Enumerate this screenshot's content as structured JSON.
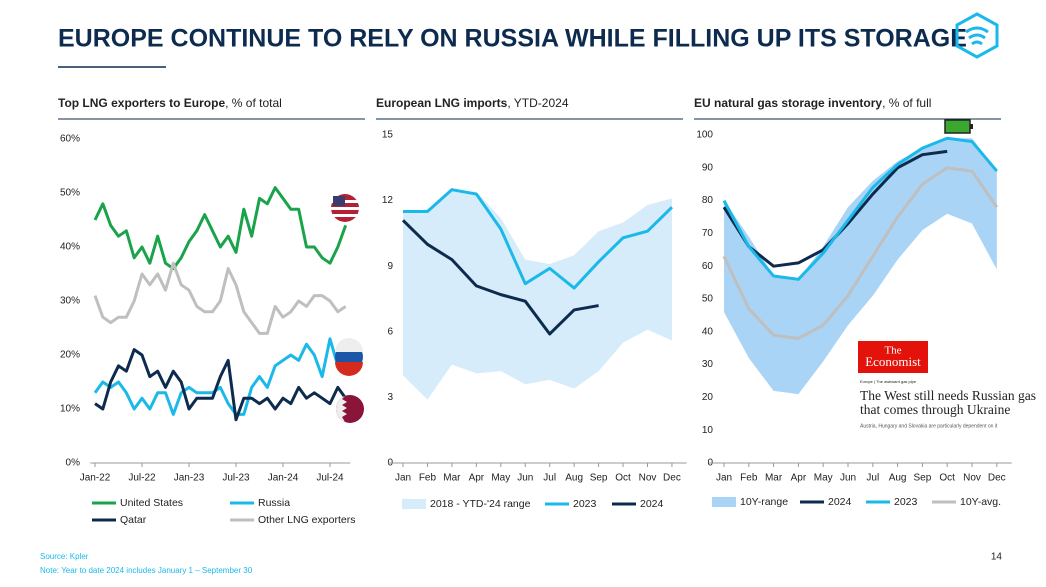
{
  "header": {
    "title": "EUROPE CONTINUE TO RELY ON RUSSIA WHILE FILLING UP ITS STORAGE"
  },
  "chart_data": [
    {
      "type": "line",
      "title": "Top LNG exporters to Europe",
      "subtitle": ", % of total",
      "categories": [
        "Jan-22",
        null,
        null,
        null,
        null,
        null,
        "Jul-22",
        null,
        null,
        null,
        null,
        null,
        "Jan-23",
        null,
        null,
        null,
        null,
        null,
        "Jul-23",
        null,
        null,
        null,
        null,
        null,
        "Jan-24",
        null,
        null,
        null,
        null,
        null,
        "Jul-24",
        null,
        null
      ],
      "ylim": [
        0,
        60
      ],
      "yticks": [
        {
          "value": 0,
          "label": "0%"
        },
        {
          "value": 10,
          "label": "10%"
        },
        {
          "value": 20,
          "label": "20%"
        },
        {
          "value": 30,
          "label": "30%"
        },
        {
          "value": 40,
          "label": "40%"
        },
        {
          "value": 50,
          "label": "50%"
        },
        {
          "value": 60,
          "label": "60%"
        }
      ],
      "series": [
        {
          "name": "United States",
          "color": "#1aa34a",
          "values": [
            45,
            48,
            44,
            42,
            43,
            38,
            40,
            37,
            42,
            37,
            36,
            38,
            41,
            43,
            46,
            43,
            40,
            42,
            39,
            47,
            42,
            49,
            48,
            51,
            49,
            47,
            47,
            40,
            40,
            38,
            37,
            40,
            44
          ]
        },
        {
          "name": "Russia",
          "color": "#1ab9ea",
          "values": [
            13,
            15,
            14,
            15,
            13,
            10,
            12,
            10,
            13,
            13,
            9,
            13,
            14,
            13,
            13,
            13,
            14,
            11,
            9,
            9,
            14,
            16,
            14,
            18,
            19,
            20,
            19,
            22,
            20,
            16,
            23,
            18,
            17
          ]
        },
        {
          "name": "Qatar",
          "color": "#0d2b4e",
          "values": [
            11,
            10,
            15,
            18,
            17,
            21,
            20,
            16,
            17,
            14,
            17,
            15,
            10,
            12,
            12,
            12,
            16,
            19,
            8,
            12,
            12,
            11,
            12,
            10,
            12,
            11,
            14,
            12,
            13,
            12,
            11,
            14,
            12
          ]
        },
        {
          "name": "Other LNG exporters",
          "color": "#bfbfbf",
          "values": [
            31,
            27,
            26,
            27,
            27,
            30,
            35,
            33,
            35,
            32,
            37,
            33,
            32,
            29,
            28,
            28,
            30,
            36,
            33,
            28,
            26,
            24,
            24,
            29,
            27,
            28,
            30,
            29,
            31,
            31,
            30,
            28,
            29
          ]
        }
      ]
    },
    {
      "type": "line",
      "title": "European LNG imports",
      "subtitle": ", YTD-2024",
      "categories": [
        "Jan",
        "Feb",
        "Mar",
        "Apr",
        "May",
        "Jun",
        "Jul",
        "Aug",
        "Sep",
        "Oct",
        "Nov",
        "Dec"
      ],
      "ylim": [
        0,
        15
      ],
      "yticks": [
        0,
        3,
        6,
        9,
        12,
        15
      ],
      "series": [
        {
          "name": "2018 - YTD-'24 range",
          "color": "#d6ecfa",
          "low": [
            4.0,
            2.9,
            4.5,
            4.1,
            4.2,
            3.6,
            3.8,
            3.4,
            4.2,
            5.5,
            6.1,
            5.6
          ],
          "high": [
            11.5,
            11.6,
            12.5,
            12.4,
            11.2,
            9.3,
            9.1,
            9.5,
            10.6,
            11.0,
            11.8,
            12.1
          ]
        },
        {
          "name": "2023",
          "color": "#1ab9ea",
          "values": [
            11.5,
            11.5,
            12.5,
            12.3,
            10.7,
            8.2,
            8.9,
            8.0,
            9.2,
            10.3,
            10.6,
            11.7
          ]
        },
        {
          "name": "2024",
          "color": "#0d2b4e",
          "values": [
            11.1,
            10.0,
            9.3,
            8.1,
            7.7,
            7.4,
            5.9,
            7.0,
            7.2,
            null,
            null,
            null
          ]
        }
      ]
    },
    {
      "type": "line",
      "title": "EU natural gas storage inventory",
      "subtitle": ", % of full",
      "categories": [
        "Jan",
        "Feb",
        "Mar",
        "Apr",
        "May",
        "Jun",
        "Jul",
        "Aug",
        "Sep",
        "Oct",
        "Nov",
        "Dec"
      ],
      "ylim": [
        0,
        100
      ],
      "yticks": [
        0,
        10,
        20,
        30,
        40,
        50,
        60,
        70,
        80,
        90,
        100
      ],
      "series": [
        {
          "name": "10Y-range",
          "color": "#a9d4f5",
          "low": [
            46,
            32,
            22,
            21,
            31,
            42,
            51,
            62,
            71,
            76,
            73,
            59
          ],
          "high": [
            80,
            69,
            57,
            56,
            66,
            78,
            86,
            92,
            96,
            99,
            99,
            89
          ]
        },
        {
          "name": "2024",
          "color": "#0d2b4e",
          "values": [
            78,
            66,
            60,
            61,
            65,
            73,
            82,
            90,
            94,
            95,
            null,
            null
          ]
        },
        {
          "name": "2023",
          "color": "#1ab9ea",
          "values": [
            80,
            66,
            57,
            56,
            64,
            74,
            84,
            91,
            96,
            99,
            98,
            89
          ]
        },
        {
          "name": "10Y-avg.",
          "color": "#bfbfbf",
          "values": [
            63,
            47,
            39,
            38,
            42,
            51,
            63,
            75,
            85,
            90,
            89,
            78
          ]
        }
      ]
    }
  ],
  "inset": {
    "masthead_1": "The",
    "masthead_2": "Economist",
    "section": "Europe | The awkward gas pipe",
    "headline_1": "The West still needs Russian gas",
    "headline_2": "that comes through Ukraine",
    "standfirst": "Austria, Hungary and Slovakia are particularly dependent on it"
  },
  "footer": {
    "source": "Source: Kpler",
    "note": "Note: Year to date 2024 includes January 1 – September 30",
    "page": "14"
  }
}
